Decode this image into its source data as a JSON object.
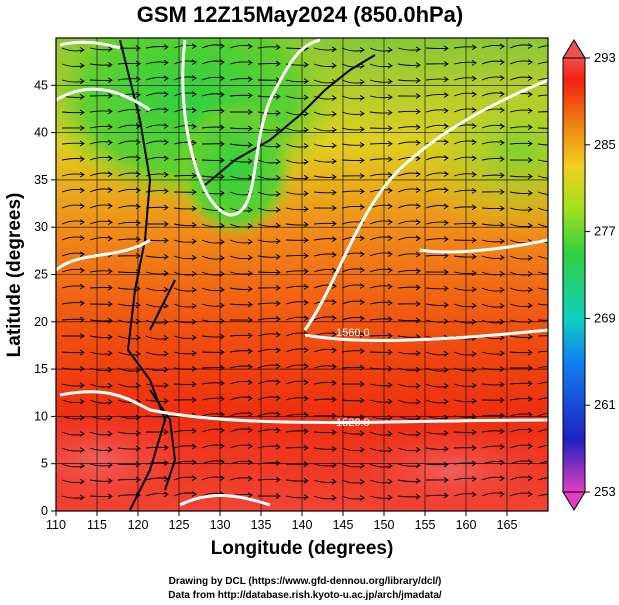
{
  "title": "GSM 12Z15May2024 (850.0hPa)",
  "xlabel": "Longitude (degrees)",
  "ylabel": "Latitude  (degrees)",
  "credits": [
    "Drawing by DCL (https://www.gfd-dennou.org/library/dcl/)",
    "Data from http://database.rish.kyoto-u.ac.jp/arch/jmadata/"
  ],
  "map": {
    "lon_range": [
      110,
      170
    ],
    "lat_range": [
      0,
      50
    ],
    "x_ticks": [
      "110",
      "115",
      "120",
      "125",
      "130",
      "135",
      "140",
      "145",
      "150",
      "155",
      "160",
      "165"
    ],
    "y_ticks": [
      "0",
      "5",
      "10",
      "15",
      "20",
      "25",
      "30",
      "35",
      "40",
      "45"
    ],
    "contour_labels": [
      "1560.0",
      "1520.0"
    ]
  },
  "colorbar": {
    "range": [
      253,
      293
    ],
    "ticks": [
      "293",
      "285",
      "277",
      "269",
      "261",
      "253"
    ],
    "colors": [
      "#e040c0",
      "#2020c0",
      "#1080f0",
      "#10d0c0",
      "#30d040",
      "#a0e020",
      "#f0d020",
      "#f08010",
      "#f02010",
      "#f05050"
    ]
  }
}
